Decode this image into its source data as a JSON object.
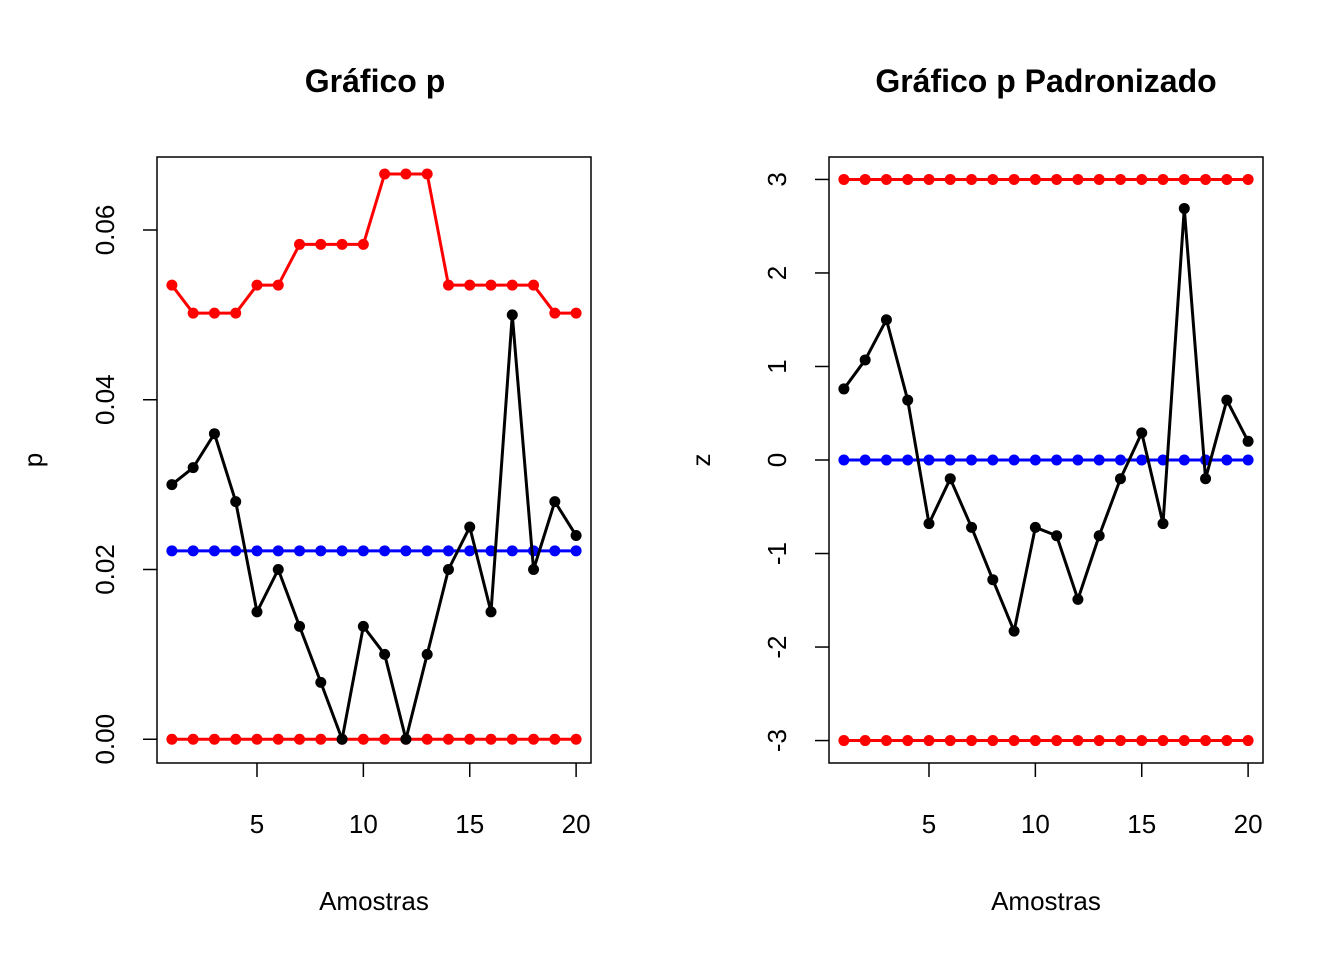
{
  "chart_data": [
    {
      "type": "line",
      "title": "Gráfico p",
      "xlabel": "Amostras",
      "ylabel": "p",
      "xlim": [
        0.3,
        20.7
      ],
      "ylim": [
        -0.0028,
        0.0686
      ],
      "x_ticks": [
        "5",
        "10",
        "15",
        "20"
      ],
      "y_ticks": [
        "0.00",
        "0.02",
        "0.04",
        "0.06"
      ],
      "colors": {
        "ucl": "#ff0000",
        "lcl": "#ff0000",
        "center": "#0000ff",
        "data": "#000000"
      },
      "x": [
        1,
        2,
        3,
        4,
        5,
        6,
        7,
        8,
        9,
        10,
        11,
        12,
        13,
        14,
        15,
        16,
        17,
        18,
        19,
        20
      ],
      "series": [
        {
          "role": "ucl",
          "values": [
            0.0535,
            0.0502,
            0.0502,
            0.0502,
            0.0535,
            0.0535,
            0.0583,
            0.0583,
            0.0583,
            0.0583,
            0.0666,
            0.0666,
            0.0666,
            0.0535,
            0.0535,
            0.0535,
            0.0535,
            0.0535,
            0.0502,
            0.0502
          ]
        },
        {
          "role": "center",
          "values": [
            0.0222,
            0.0222,
            0.0222,
            0.0222,
            0.0222,
            0.0222,
            0.0222,
            0.0222,
            0.0222,
            0.0222,
            0.0222,
            0.0222,
            0.0222,
            0.0222,
            0.0222,
            0.0222,
            0.0222,
            0.0222,
            0.0222,
            0.0222
          ]
        },
        {
          "role": "lcl",
          "values": [
            0,
            0,
            0,
            0,
            0,
            0,
            0,
            0,
            0,
            0,
            0,
            0,
            0,
            0,
            0,
            0,
            0,
            0,
            0,
            0
          ]
        },
        {
          "role": "data",
          "values": [
            0.03,
            0.032,
            0.036,
            0.028,
            0.015,
            0.02,
            0.0133,
            0.0067,
            0.0,
            0.0133,
            0.01,
            0.0,
            0.01,
            0.02,
            0.025,
            0.015,
            0.05,
            0.02,
            0.028,
            0.024
          ]
        }
      ]
    },
    {
      "type": "line",
      "title": "Gráfico p Padronizado",
      "xlabel": "Amostras",
      "ylabel": "z",
      "xlim": [
        0.3,
        20.7
      ],
      "ylim": [
        -3.24,
        3.24
      ],
      "x_ticks": [
        "5",
        "10",
        "15",
        "20"
      ],
      "y_ticks": [
        "-3",
        "-2",
        "-1",
        "0",
        "1",
        "2",
        "3"
      ],
      "colors": {
        "ucl": "#ff0000",
        "lcl": "#ff0000",
        "center": "#0000ff",
        "data": "#000000"
      },
      "x": [
        1,
        2,
        3,
        4,
        5,
        6,
        7,
        8,
        9,
        10,
        11,
        12,
        13,
        14,
        15,
        16,
        17,
        18,
        19,
        20
      ],
      "series": [
        {
          "role": "ucl",
          "values": [
            3,
            3,
            3,
            3,
            3,
            3,
            3,
            3,
            3,
            3,
            3,
            3,
            3,
            3,
            3,
            3,
            3,
            3,
            3,
            3
          ]
        },
        {
          "role": "center",
          "values": [
            0,
            0,
            0,
            0,
            0,
            0,
            0,
            0,
            0,
            0,
            0,
            0,
            0,
            0,
            0,
            0,
            0,
            0,
            0,
            0
          ]
        },
        {
          "role": "lcl",
          "values": [
            -3,
            -3,
            -3,
            -3,
            -3,
            -3,
            -3,
            -3,
            -3,
            -3,
            -3,
            -3,
            -3,
            -3,
            -3,
            -3,
            -3,
            -3,
            -3,
            -3
          ]
        },
        {
          "role": "data",
          "values": [
            0.76,
            1.07,
            1.5,
            0.64,
            -0.68,
            -0.2,
            -0.72,
            -1.28,
            -1.83,
            -0.72,
            -0.81,
            -1.49,
            -0.81,
            -0.2,
            0.29,
            -0.68,
            2.69,
            -0.2,
            0.64,
            0.2
          ]
        }
      ]
    }
  ]
}
